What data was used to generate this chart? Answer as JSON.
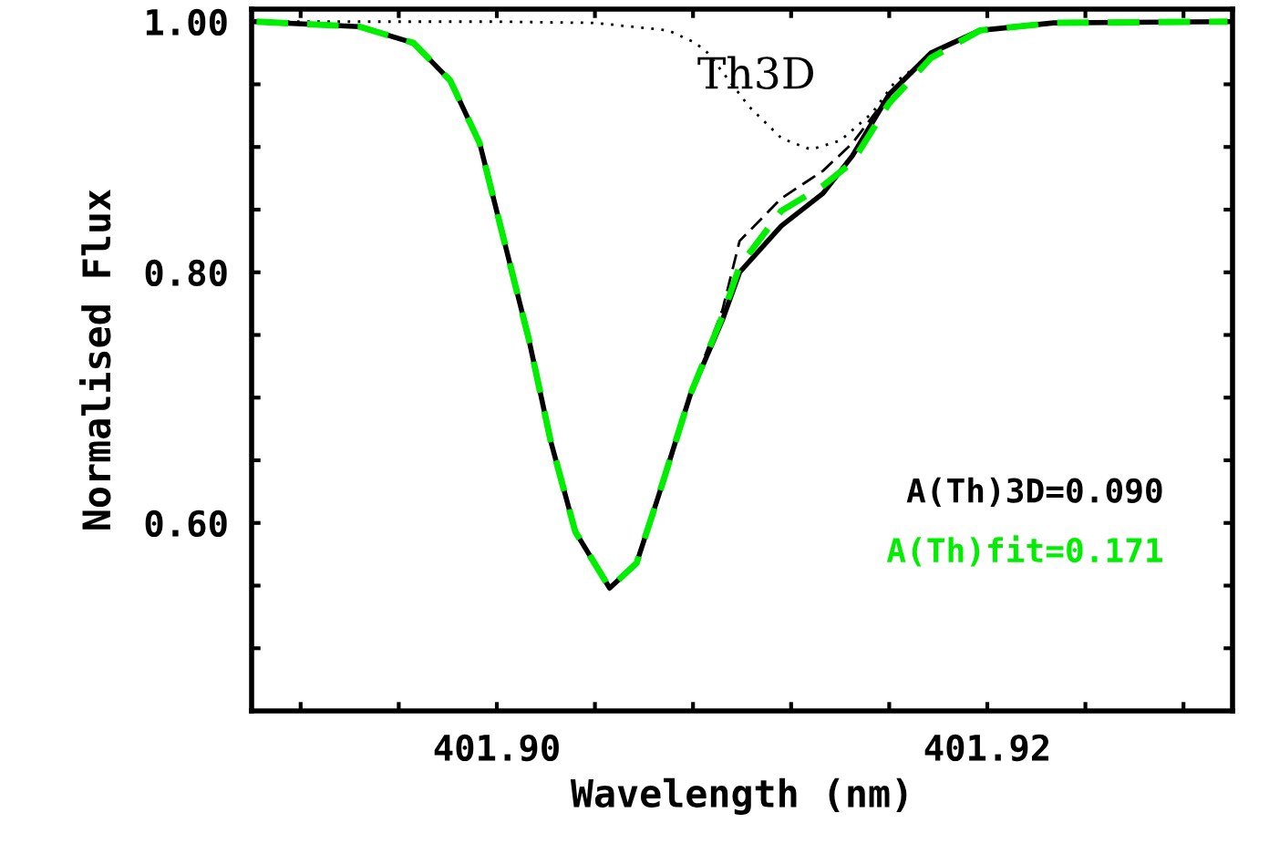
{
  "chart_data": {
    "type": "line",
    "xlabel": "Wavelength (nm)",
    "ylabel": "Normalised Flux",
    "xlim": [
      401.89,
      401.93
    ],
    "ylim": [
      0.45,
      1.01
    ],
    "xticks": [
      {
        "value": 401.892,
        "label": null
      },
      {
        "value": 401.896,
        "label": null
      },
      {
        "value": 401.9,
        "label": "401.90"
      },
      {
        "value": 401.904,
        "label": null
      },
      {
        "value": 401.908,
        "label": null
      },
      {
        "value": 401.912,
        "label": null
      },
      {
        "value": 401.916,
        "label": null
      },
      {
        "value": 401.92,
        "label": "401.92"
      },
      {
        "value": 401.924,
        "label": null
      },
      {
        "value": 401.928,
        "label": null
      }
    ],
    "yticks": [
      {
        "value": 0.5,
        "label": null
      },
      {
        "value": 0.55,
        "label": null
      },
      {
        "value": 0.6,
        "label": "0.60"
      },
      {
        "value": 0.65,
        "label": null
      },
      {
        "value": 0.7,
        "label": null
      },
      {
        "value": 0.75,
        "label": null
      },
      {
        "value": 0.8,
        "label": "0.80"
      },
      {
        "value": 0.85,
        "label": null
      },
      {
        "value": 0.9,
        "label": null
      },
      {
        "value": 0.95,
        "label": null
      },
      {
        "value": 1.0,
        "label": "1.00"
      }
    ],
    "grid": false,
    "annotations": [
      "A(Th)3D=0.090"
    ],
    "series": [
      {
        "name": "Th3D",
        "color": "#000000",
        "line_style": "dotted",
        "x": [
          401.8902,
          401.896,
          401.9,
          401.904,
          401.907,
          401.9081,
          401.9086,
          401.9103,
          401.9116,
          401.9128,
          401.914,
          401.9153,
          401.9162,
          401.9182,
          401.9197,
          401.9227,
          401.9298
        ],
        "values": [
          1.0,
          1.0,
          1.0,
          0.999,
          0.993,
          0.983,
          0.975,
          0.932,
          0.907,
          0.898,
          0.905,
          0.927,
          0.951,
          0.98,
          0.993,
          0.999,
          1.0
        ]
      },
      {
        "color": "#000000",
        "line_style": "dashed",
        "x": [
          401.8902,
          401.8944,
          401.8966,
          401.8981,
          401.8993,
          401.9003,
          401.9013,
          401.9022,
          401.9032,
          401.9046,
          401.9057,
          401.9066,
          401.9079,
          401.9092,
          401.9099,
          401.9116,
          401.9133,
          401.9145,
          401.916,
          401.9177,
          401.9197,
          401.9227,
          401.9298
        ],
        "values": [
          1.0,
          0.996,
          0.983,
          0.953,
          0.903,
          0.825,
          0.747,
          0.665,
          0.593,
          0.548,
          0.568,
          0.622,
          0.703,
          0.77,
          0.825,
          0.859,
          0.881,
          0.903,
          0.942,
          0.975,
          0.993,
          0.999,
          1.0
        ]
      },
      {
        "color": "#000000",
        "line_style": "solid",
        "x": [
          401.8902,
          401.8944,
          401.8966,
          401.8981,
          401.8993,
          401.9003,
          401.9013,
          401.9022,
          401.9032,
          401.9046,
          401.9057,
          401.9066,
          401.9079,
          401.9092,
          401.9099,
          401.9116,
          401.9133,
          401.9145,
          401.916,
          401.9177,
          401.9197,
          401.9227,
          401.9298
        ],
        "values": [
          1.0,
          0.996,
          0.983,
          0.953,
          0.903,
          0.825,
          0.747,
          0.665,
          0.593,
          0.548,
          0.568,
          0.622,
          0.703,
          0.762,
          0.8,
          0.837,
          0.863,
          0.893,
          0.942,
          0.975,
          0.993,
          0.999,
          1.0
        ]
      },
      {
        "name": "A(Th)fit=0.171",
        "color": "#00ee00",
        "line_style": "dashed",
        "x": [
          401.8902,
          401.8944,
          401.8966,
          401.8981,
          401.8993,
          401.9003,
          401.9013,
          401.9022,
          401.9032,
          401.9046,
          401.9057,
          401.9066,
          401.9079,
          401.9092,
          401.9099,
          401.9116,
          401.9133,
          401.9145,
          401.916,
          401.9177,
          401.9197,
          401.9227,
          401.9298
        ],
        "values": [
          1.0,
          0.996,
          0.983,
          0.953,
          0.903,
          0.825,
          0.747,
          0.665,
          0.593,
          0.548,
          0.568,
          0.622,
          0.703,
          0.765,
          0.805,
          0.849,
          0.869,
          0.888,
          0.935,
          0.971,
          0.993,
          0.999,
          1.0
        ]
      }
    ]
  }
}
